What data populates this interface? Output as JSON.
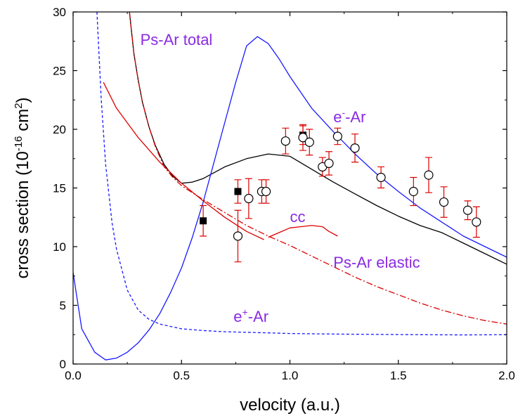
{
  "chart_data": {
    "type": "line",
    "xlabel": "velocity (a.u.)",
    "ylabel_parts": [
      "cross section (10",
      "-16",
      " cm",
      "2",
      ")"
    ],
    "xlim": [
      0.0,
      2.0
    ],
    "ylim": [
      0,
      30
    ],
    "x_ticks": [
      "0.0",
      "0.5",
      "1.0",
      "1.5",
      "2.0"
    ],
    "y_ticks": [
      "0",
      "5",
      "10",
      "15",
      "20",
      "25",
      "30"
    ],
    "grid": false,
    "legend": "none",
    "series": [
      {
        "name": "Ps-Ar total",
        "color": "#000000",
        "style": "solid",
        "x": [
          0.26,
          0.28,
          0.3,
          0.32,
          0.35,
          0.38,
          0.42,
          0.46,
          0.5,
          0.55,
          0.6,
          0.7,
          0.8,
          0.9,
          1.0,
          1.1,
          1.2,
          1.3,
          1.4,
          1.5,
          1.6,
          1.7,
          1.8,
          1.9,
          2.0
        ],
        "y": [
          30,
          26.5,
          24.2,
          22.3,
          20.2,
          18.6,
          17.0,
          16.0,
          15.4,
          15.5,
          15.8,
          16.8,
          17.5,
          17.9,
          17.7,
          16.6,
          15.5,
          14.5,
          13.5,
          12.6,
          11.8,
          11.2,
          10.3,
          9.4,
          8.5
        ]
      },
      {
        "name": "Ps-Ar elastic",
        "color": "#dd0000",
        "style": "dashdot",
        "x": [
          0.26,
          0.28,
          0.3,
          0.32,
          0.35,
          0.38,
          0.42,
          0.46,
          0.5,
          0.6,
          0.7,
          0.8,
          0.9,
          1.0,
          1.1,
          1.2,
          1.3,
          1.4,
          1.5,
          1.6,
          1.7,
          1.8,
          1.9,
          2.0
        ],
        "y": [
          30,
          26.5,
          24.2,
          22.3,
          20.2,
          18.5,
          16.8,
          15.9,
          15.2,
          14.0,
          12.9,
          11.8,
          10.9,
          10.1,
          9.2,
          8.3,
          7.4,
          6.6,
          5.9,
          5.2,
          4.6,
          4.1,
          3.7,
          3.4
        ]
      },
      {
        "name": "",
        "color": "#dd0000",
        "style": "solid",
        "x": [
          0.14,
          0.2,
          0.3,
          0.4,
          0.5,
          0.6,
          0.7,
          0.8,
          0.88
        ],
        "y": [
          24.0,
          21.8,
          19.3,
          17.2,
          15.4,
          13.9,
          12.5,
          11.3,
          10.6
        ]
      },
      {
        "name": "cc",
        "color": "#dd0000",
        "style": "solid",
        "x": [
          0.9,
          0.95,
          1.0,
          1.05,
          1.1,
          1.15,
          1.18,
          1.22
        ],
        "y": [
          10.8,
          11.2,
          11.6,
          11.7,
          11.8,
          11.7,
          11.3,
          10.9
        ]
      },
      {
        "name": "e⁻-Ar",
        "color": "#1a1aff",
        "style": "solid",
        "x": [
          0.0,
          0.04,
          0.1,
          0.15,
          0.2,
          0.25,
          0.3,
          0.35,
          0.4,
          0.45,
          0.5,
          0.55,
          0.6,
          0.65,
          0.7,
          0.75,
          0.8,
          0.85,
          0.9,
          0.95,
          1.0,
          1.1,
          1.2,
          1.3,
          1.4,
          1.5,
          1.6,
          1.7,
          1.8,
          1.9,
          2.0
        ],
        "y": [
          7.8,
          3.0,
          1.0,
          0.35,
          0.5,
          1.0,
          1.8,
          2.9,
          4.3,
          6.1,
          8.2,
          10.8,
          13.8,
          17.2,
          20.6,
          24.0,
          27.1,
          27.9,
          27.3,
          26.0,
          24.5,
          21.8,
          19.8,
          17.9,
          16.2,
          14.7,
          13.3,
          12.1,
          10.9,
          10.0,
          9.1
        ]
      },
      {
        "name": "e⁺-Ar",
        "color": "#1a1aff",
        "style": "dashed",
        "x": [
          0.11,
          0.13,
          0.15,
          0.18,
          0.2,
          0.25,
          0.3,
          0.35,
          0.4,
          0.5,
          0.6,
          0.7,
          0.8,
          0.9,
          1.0,
          1.2,
          1.4,
          1.6,
          1.8,
          2.0
        ],
        "y": [
          30,
          22.5,
          17.0,
          12.0,
          9.8,
          6.3,
          4.6,
          3.8,
          3.4,
          3.0,
          2.85,
          2.75,
          2.7,
          2.65,
          2.6,
          2.55,
          2.52,
          2.5,
          2.48,
          2.5
        ]
      }
    ],
    "data_points": [
      {
        "x": 0.6,
        "y": 12.2,
        "err": 1.3,
        "marker": "filled-square"
      },
      {
        "x": 0.76,
        "y": 14.7,
        "err": 1.0,
        "marker": "filled-square"
      },
      {
        "x": 1.06,
        "y": 19.5,
        "err": 0.8,
        "marker": "filled-square"
      },
      {
        "x": 0.76,
        "y": 10.9,
        "err": 2.2,
        "marker": "open-circle"
      },
      {
        "x": 0.81,
        "y": 14.1,
        "err": 1.7,
        "marker": "open-circle"
      },
      {
        "x": 0.87,
        "y": 14.7,
        "err": 1.0,
        "marker": "open-circle"
      },
      {
        "x": 0.89,
        "y": 14.7,
        "err": 1.0,
        "marker": "open-circle"
      },
      {
        "x": 0.98,
        "y": 19.0,
        "err": 1.1,
        "marker": "open-circle"
      },
      {
        "x": 1.06,
        "y": 19.3,
        "err": 1.1,
        "marker": "open-circle"
      },
      {
        "x": 1.09,
        "y": 18.9,
        "err": 1.1,
        "marker": "open-circle"
      },
      {
        "x": 1.15,
        "y": 16.8,
        "err": 0.8,
        "marker": "open-circle"
      },
      {
        "x": 1.18,
        "y": 17.1,
        "err": 1.0,
        "marker": "open-circle"
      },
      {
        "x": 1.22,
        "y": 19.4,
        "err": 0.7,
        "marker": "open-circle"
      },
      {
        "x": 1.3,
        "y": 18.4,
        "err": 1.2,
        "marker": "open-circle"
      },
      {
        "x": 1.42,
        "y": 15.9,
        "err": 0.9,
        "marker": "open-circle"
      },
      {
        "x": 1.57,
        "y": 14.7,
        "err": 1.2,
        "marker": "open-circle"
      },
      {
        "x": 1.64,
        "y": 16.1,
        "err": 1.5,
        "marker": "open-circle"
      },
      {
        "x": 1.71,
        "y": 13.8,
        "err": 1.3,
        "marker": "open-circle"
      },
      {
        "x": 1.82,
        "y": 13.1,
        "err": 0.8,
        "marker": "open-circle"
      },
      {
        "x": 1.86,
        "y": 12.1,
        "err": 1.3,
        "marker": "open-circle"
      }
    ],
    "errorbar_color": "#dd0000",
    "annotation_color": "#8a2be2",
    "annotations": [
      {
        "id": "ps-total",
        "text": "Ps-Ar total",
        "at": [
          0.31,
          27.2
        ]
      },
      {
        "id": "e-minus",
        "text": "e",
        "sup": "-",
        "rest": "-Ar",
        "at": [
          1.2,
          20.6
        ]
      },
      {
        "id": "cc",
        "text": "cc",
        "at": [
          1.0,
          12.1
        ]
      },
      {
        "id": "ps-elastic",
        "text": "Ps-Ar elastic",
        "at": [
          1.2,
          8.2
        ]
      },
      {
        "id": "e-plus",
        "text": "e",
        "sup": "+",
        "rest": "-Ar",
        "at": [
          0.74,
          3.6
        ]
      }
    ]
  }
}
